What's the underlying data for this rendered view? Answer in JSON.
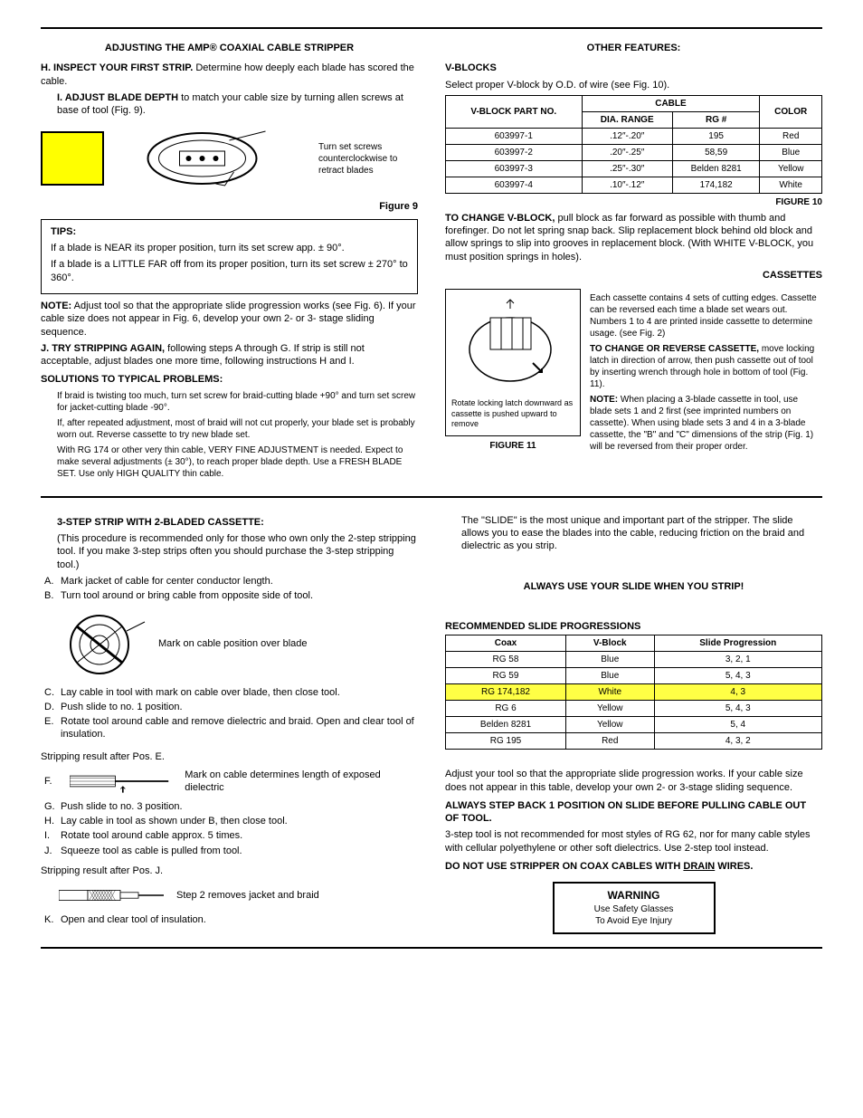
{
  "top_section": {
    "left": {
      "title": "ADJUSTING THE AMP® COAXIAL CABLE STRIPPER",
      "H_bold": "H. INSPECT YOUR FIRST STRIP.",
      "H_text": " Determine how deeply each blade has scored the cable.",
      "I_bold": "I. ADJUST BLADE DEPTH",
      "I_text": " to match your cable size by turning allen screws at base of tool (Fig. 9).",
      "fig9_note": "Turn set screws counterclockwise to retract blades",
      "fig9_label": "Figure 9",
      "tips_title": "TIPS:",
      "tips_1": "If a blade is NEAR its proper position, turn its set screw app. ± 90°.",
      "tips_2": "If a blade is a LITTLE FAR off from its proper position, turn its set screw ± 270° to 360°.",
      "note_bold": "NOTE:",
      "note_text": " Adjust tool so that the appropriate slide progression works (see Fig. 6). If your cable size does not appear in Fig. 6, develop your own 2- or 3- stage sliding sequence.",
      "J_bold": "J. TRY STRIPPING AGAIN,",
      "J_text": " following steps A through G. If strip is still not acceptable, adjust blades one more time, following instructions H and I.",
      "solutions_title": "SOLUTIONS TO TYPICAL PROBLEMS:",
      "sol_1": "If braid is twisting too much, turn set screw for braid-cutting blade +90° and turn set screw for jacket-cutting blade -90°.",
      "sol_2": "If, after repeated adjustment, most of braid will not cut properly, your blade set is probably worn out. Reverse cassette to try new blade set.",
      "sol_3": "With RG 174 or other very thin cable, VERY FINE ADJUSTMENT is needed. Expect to make several adjustments (± 30°), to reach proper blade depth. Use a FRESH BLADE SET. Use only HIGH QUALITY thin cable."
    },
    "right": {
      "title": "OTHER FEATURES:",
      "vblocks_title": "V-BLOCKS",
      "vblocks_intro": "Select proper V-block by O.D. of wire (see Fig. 10).",
      "vblock_table": {
        "h_partno": "V-BLOCK PART NO.",
        "h_cable": "CABLE",
        "h_dia": "DIA. RANGE",
        "h_rg": "RG #",
        "h_color": "COLOR",
        "rows": [
          {
            "p": "603997-1",
            "d": ".12″-.20″",
            "r": "195",
            "c": "Red"
          },
          {
            "p": "603997-2",
            "d": ".20″-.25″",
            "r": "58,59",
            "c": "Blue"
          },
          {
            "p": "603997-3",
            "d": ".25″-.30″",
            "r": "Belden 8281",
            "c": "Yellow"
          },
          {
            "p": "603997-4",
            "d": ".10″-.12″",
            "r": "174,182",
            "c": "White"
          }
        ]
      },
      "fig10_label": "FIGURE 10",
      "change_vblock_bold": "TO CHANGE V-BLOCK,",
      "change_vblock_text": " pull block as far forward as possible with thumb and forefinger. Do not let spring snap back. Slip replacement block behind old block and allow springs to slip into grooves in replacement block. (With WHITE V-BLOCK, you must position springs in holes).",
      "cassettes_title": "CASSETTES",
      "cassettes_intro": "Each cassette contains 4 sets of cutting edges. Cassette can be reversed each time a blade set wears out. Numbers 1 to 4 are printed inside cassette to determine usage. (see Fig. 2)",
      "change_cassette_bold": "TO CHANGE OR REVERSE CASSETTE,",
      "change_cassette_text": " move locking latch in direction of arrow, then push cassette out of tool by inserting wrench through hole in bottom of tool (Fig. 11).",
      "cassette_note_bold": "NOTE:",
      "cassette_note_text": " When placing a 3-blade cassette in tool, use blade sets 1 and 2 first (see imprinted numbers on cassette). When using blade sets 3 and 4 in a 3-blade cassette, the \"B\" and \"C\" dimensions of the strip (Fig. 1) will be reversed from their proper order.",
      "fig11_caption": "Rotate locking latch downward as cassette is pushed upward to remove",
      "fig11_label": "FIGURE 11"
    }
  },
  "bottom_section": {
    "left": {
      "title": "3-STEP STRIP WITH 2-BLADED CASSETTE:",
      "intro": "(This procedure is recommended only for those who own only the 2-step stripping tool. If you make 3-step strips often you should purchase the 3-step stripping tool.)",
      "A": "Mark jacket of cable for center conductor length.",
      "B": "Turn tool around or bring cable from opposite side of tool.",
      "fig_mark": "Mark on cable position over blade",
      "C": "Lay cable in tool with mark on cable over blade, then close tool.",
      "D": "Push slide to no. 1 position.",
      "E": "Rotate tool around cable and remove dielectric and braid. Open and clear tool of insulation.",
      "posE_label": "Stripping result after Pos. E.",
      "F": "F.",
      "F_note": "Mark on cable determines length of exposed dielectric",
      "G": "Push slide to no. 3 position.",
      "H": "Lay cable in tool as shown under B, then close tool.",
      "I": "Rotate tool around cable approx. 5 times.",
      "J": "Squeeze tool as cable is pulled from tool.",
      "posJ_label": "Stripping result after Pos. J.",
      "J_note": "Step 2 removes jacket and braid",
      "K": "Open and clear tool of insulation."
    },
    "right": {
      "slide_intro": "The \"SLIDE\" is the most unique and important part of the stripper. The slide allows you to ease the blades into the cable, reducing friction on the braid and dielectric as you strip.",
      "always_use": "ALWAYS USE YOUR SLIDE WHEN YOU STRIP!",
      "rec_title": "RECOMMENDED SLIDE PROGRESSIONS",
      "slide_table": {
        "h_coax": "Coax",
        "h_vblock": "V-Block",
        "h_prog": "Slide Progression",
        "rows": [
          {
            "c": "RG 58",
            "v": "Blue",
            "p": "3, 2, 1",
            "hl": false
          },
          {
            "c": "RG 59",
            "v": "Blue",
            "p": "5, 4, 3",
            "hl": false
          },
          {
            "c": "RG 174,182",
            "v": "White",
            "p": "4, 3",
            "hl": true
          },
          {
            "c": "RG 6",
            "v": "Yellow",
            "p": "5, 4, 3",
            "hl": false
          },
          {
            "c": "Belden 8281",
            "v": "Yellow",
            "p": "5, 4",
            "hl": false
          },
          {
            "c": "RG 195",
            "v": "Red",
            "p": "4, 3, 2",
            "hl": false
          }
        ]
      },
      "adjust_text": "Adjust your tool so that the appropriate slide progression works. If your cable size does not appear in this table, develop your own 2- or 3-stage sliding sequence.",
      "step_back": "ALWAYS STEP BACK 1 POSITION ON SLIDE BEFORE PULLING CABLE OUT OF TOOL.",
      "not_rec": "3-step tool is not recommended for most styles of RG 62, nor for many cable styles with cellular polyethylene or other soft dielectrics. Use 2-step tool instead.",
      "no_drain_pre": "DO NOT USE STRIPPER ON COAX CABLES WITH ",
      "no_drain_drain": "DRAIN",
      "no_drain_post": " WIRES.",
      "warn_title": "WARNING",
      "warn_l1": "Use Safety Glasses",
      "warn_l2": "To Avoid Eye Injury"
    }
  },
  "colors": {
    "highlight": "#ffff45",
    "yellow_box": "#ffff00",
    "text": "#000000",
    "bg": "#ffffff"
  }
}
